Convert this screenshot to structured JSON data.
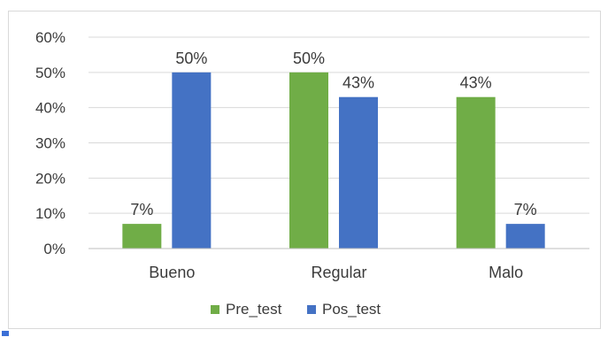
{
  "chart_data": {
    "type": "bar",
    "title": "",
    "xlabel": "",
    "ylabel": "",
    "categories": [
      "Bueno",
      "Regular",
      "Malo"
    ],
    "series": [
      {
        "name": "Pre_test",
        "values": [
          7,
          50,
          43
        ],
        "labels": [
          "7%",
          "50%",
          "43%"
        ],
        "color": "#70ad47"
      },
      {
        "name": "Pos_test",
        "values": [
          50,
          43,
          7
        ],
        "labels": [
          "50%",
          "43%",
          "7%"
        ],
        "color": "#4472c4"
      }
    ],
    "ylim": [
      0,
      60
    ],
    "y_ticks": [
      {
        "value": 0,
        "label": "0%"
      },
      {
        "value": 10,
        "label": "10%"
      },
      {
        "value": 20,
        "label": "20%"
      },
      {
        "value": 30,
        "label": "30%"
      },
      {
        "value": 40,
        "label": "40%"
      },
      {
        "value": 50,
        "label": "50%"
      },
      {
        "value": 60,
        "label": "60%"
      }
    ],
    "grid": true,
    "legend_position": "bottom",
    "gridline_color": "#d9d9d9"
  }
}
